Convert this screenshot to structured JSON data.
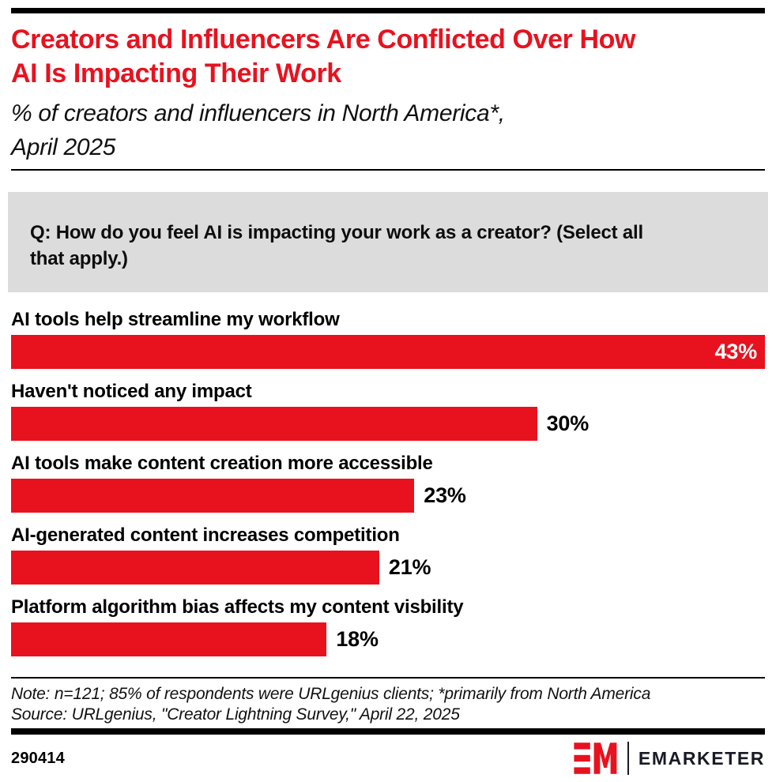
{
  "colors": {
    "accent_red": "#e8121f",
    "question_bg": "#dcdcdc",
    "brand_dark": "#1a1a26",
    "bar_label_inside_text": "#ffffff",
    "bar_label_outside_text": "#000000"
  },
  "header": {
    "title": "Creators and Influencers Are Conflicted Over How AI Is Impacting Their Work",
    "title_lines": [
      "Creators and Influencers Are Conflicted Over How",
      "AI Is Impacting Their Work"
    ],
    "subtitle": "% of creators and influencers in North America*, April 2025",
    "subtitle_lines": [
      "% of creators and influencers in North America*,",
      "April 2025"
    ]
  },
  "question": {
    "text": "Q: How do you feel AI is impacting your work as a creator? (Select all that apply.)",
    "lines": [
      "Q: How do you feel AI is impacting your work as a creator? (Select all",
      "that apply.)"
    ]
  },
  "chart_data": {
    "type": "bar",
    "orientation": "horizontal",
    "title": "Creators and Influencers Are Conflicted Over How AI Is Impacting Their Work",
    "subtitle": "% of creators and influencers in North America*, April 2025",
    "xlabel": "",
    "ylabel": "",
    "xlim": [
      0,
      43
    ],
    "grid": false,
    "legend": false,
    "bar_color": "#e8121f",
    "categories": [
      "AI tools help streamline my workflow",
      "Haven't noticed any impact",
      "AI tools make content creation more accessible",
      "AI-generated content increases competition",
      "Platform algorithm bias affects my content visbility"
    ],
    "values": [
      43,
      30,
      23,
      21,
      18
    ],
    "value_labels": [
      "43%",
      "30%",
      "23%",
      "21%",
      "18%"
    ],
    "bars": [
      {
        "category": "AI tools help streamline my workflow",
        "value": 43,
        "value_label": "43%",
        "label_inside": true
      },
      {
        "category": "Haven't noticed any impact",
        "value": 30,
        "value_label": "30%",
        "label_inside": false
      },
      {
        "category": "AI tools make content creation more accessible",
        "value": 23,
        "value_label": "23%",
        "label_inside": false
      },
      {
        "category": "AI-generated content increases competition",
        "value": 21,
        "value_label": "21%",
        "label_inside": false
      },
      {
        "category": "Platform algorithm bias affects my content visbility",
        "value": 18,
        "value_label": "18%",
        "label_inside": false
      }
    ]
  },
  "footer": {
    "note": "Note: n=121; 85% of respondents were URLgenius clients; *primarily from North America",
    "source": "Source: URLgenius, \"Creator Lightning Survey,\" April 22, 2025",
    "chart_number": "290414",
    "brand_wordmark": "EMARKETER"
  }
}
